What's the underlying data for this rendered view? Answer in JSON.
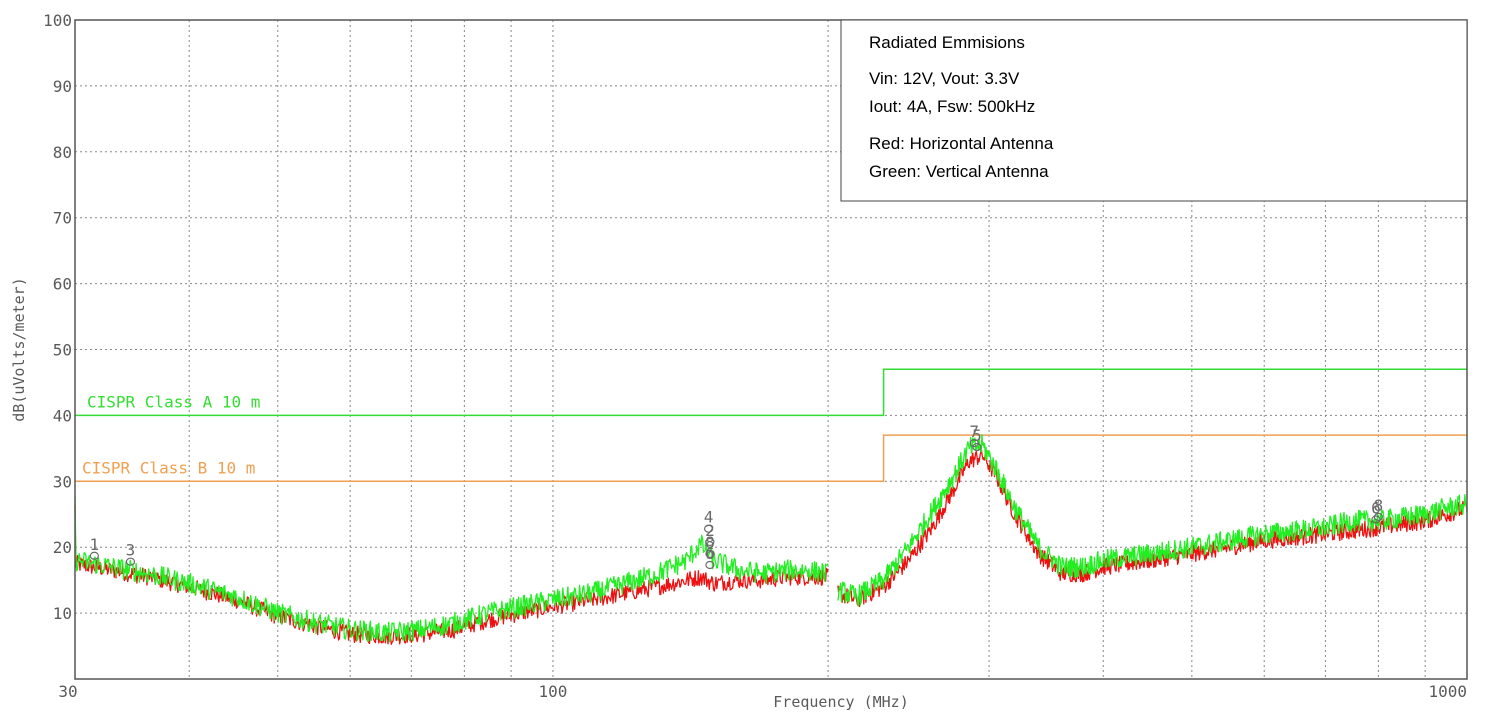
{
  "chart_data": {
    "type": "line",
    "xlabel": "Frequency (MHz)",
    "ylabel": "dB(uVolts/meter)",
    "x_scale": "log",
    "xlim": [
      30,
      1000
    ],
    "ylim": [
      0,
      100
    ],
    "grid": true,
    "x_tick_labels": [
      {
        "value": 30,
        "label": "30"
      },
      {
        "value": 100,
        "label": "100"
      },
      {
        "value": 1000,
        "label": "1000"
      }
    ],
    "y_ticks": [
      10,
      20,
      30,
      40,
      50,
      60,
      70,
      80,
      90,
      100
    ],
    "legend": {
      "placement": "top-right",
      "lines": [
        "Radiated Emmisions",
        "Vin: 12V, Vout: 3.3V",
        "Iout: 4A, Fsw: 500kHz",
        "Red: Horizontal Antenna",
        "Green: Vertical Antenna"
      ]
    },
    "limits": [
      {
        "label": "CISPR Class A 10 m",
        "color": "#33dd33",
        "steps": [
          [
            30,
            40
          ],
          [
            230,
            40
          ],
          [
            230,
            47
          ],
          [
            1000,
            47
          ]
        ]
      },
      {
        "label": "CISPR Class B 10 m",
        "color": "#f0a050",
        "steps": [
          [
            30,
            30
          ],
          [
            230,
            30
          ],
          [
            230,
            37
          ],
          [
            1000,
            37
          ]
        ]
      }
    ],
    "series": [
      {
        "color": "#ee1111",
        "x": [
          30,
          33,
          36,
          40,
          45,
          50,
          55,
          60,
          66,
          72,
          78,
          85,
          92,
          100,
          110,
          120,
          130,
          140,
          145,
          150,
          160,
          170,
          180,
          190,
          200,
          205,
          215,
          230,
          245,
          260,
          275,
          285,
          295,
          305,
          320,
          340,
          360,
          380,
          400,
          450,
          500,
          550,
          600,
          650,
          700,
          750,
          800,
          850,
          900,
          950,
          1000
        ],
        "y": [
          17.5,
          16.5,
          15.5,
          14,
          12,
          9.5,
          8,
          6.8,
          6.5,
          6.8,
          7.5,
          9,
          10,
          11,
          12,
          13,
          14,
          15,
          15.5,
          14.5,
          15,
          15,
          15.5,
          15.5,
          15.5,
          13,
          12,
          14,
          18,
          23,
          29,
          33,
          34,
          31,
          25,
          19,
          16,
          16,
          17,
          18,
          19,
          20,
          21,
          21.5,
          22,
          22.5,
          23,
          23.5,
          24,
          25,
          26
        ]
      },
      {
        "color": "#22ee22",
        "x": [
          30,
          33,
          36,
          40,
          45,
          50,
          55,
          60,
          66,
          72,
          78,
          85,
          92,
          100,
          110,
          120,
          130,
          140,
          145,
          150,
          160,
          170,
          180,
          190,
          200,
          205,
          215,
          230,
          245,
          260,
          275,
          285,
          295,
          305,
          320,
          340,
          360,
          380,
          400,
          450,
          500,
          550,
          600,
          650,
          700,
          750,
          800,
          850,
          900,
          950,
          1000
        ],
        "y": [
          18,
          17,
          16,
          14.5,
          12.5,
          10,
          8.5,
          7.5,
          7,
          7.5,
          8.5,
          10,
          11,
          12,
          13,
          14.5,
          16,
          18,
          20.5,
          18,
          16.5,
          16,
          16.5,
          16.5,
          16,
          13.5,
          12.5,
          15,
          20,
          25.5,
          31,
          35,
          35.5,
          32,
          26,
          20,
          17,
          17,
          18,
          19,
          20,
          21,
          22,
          22.5,
          23,
          24,
          24,
          24.5,
          25,
          26,
          26.5
        ]
      }
    ],
    "markers": [
      {
        "label": "1",
        "x": 31.5,
        "y": 18.7
      },
      {
        "label": "3",
        "x": 34.5,
        "y": 17.8
      },
      {
        "label": "4",
        "x": 148,
        "y": 22.8
      },
      {
        "label": "2",
        "x": 148.5,
        "y": 20.8
      },
      {
        "label": "8",
        "x": 148.5,
        "y": 19.0
      },
      {
        "label": "6",
        "x": 148.5,
        "y": 17.3
      },
      {
        "label": "7",
        "x": 289,
        "y": 35.8
      },
      {
        "label": "5",
        "x": 291,
        "y": 35.2
      },
      {
        "label": "6",
        "x": 795,
        "y": 24.2
      },
      {
        "label": "8",
        "x": 800,
        "y": 24.6
      }
    ]
  }
}
